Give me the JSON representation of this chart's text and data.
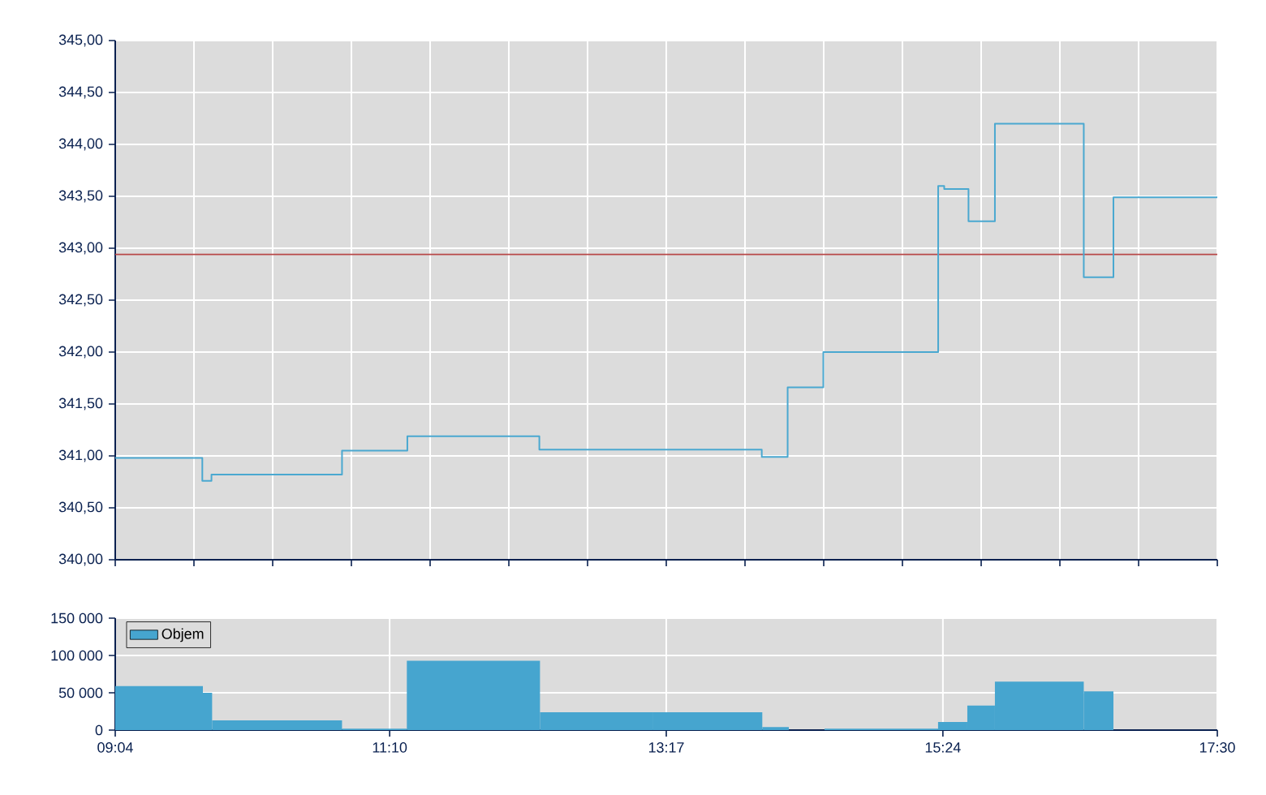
{
  "chart_data": [
    {
      "type": "step",
      "color": "#4aa8d0",
      "x": [
        9.0667,
        9.733,
        9.803,
        10.802,
        11.302,
        12.312,
        14.014,
        14.212,
        14.485,
        15.364,
        15.41,
        15.596,
        15.798,
        16.478,
        16.705,
        17.5
      ],
      "values": [
        340.98,
        340.76,
        340.82,
        341.05,
        341.19,
        341.06,
        340.99,
        341.66,
        342.0,
        343.6,
        343.57,
        343.26,
        344.2,
        342.72,
        343.49,
        343.49
      ],
      "xlim": [
        9.0667,
        17.5
      ],
      "xticks": [
        {
          "value": 9.0667,
          "label": null
        },
        {
          "value": 9.669,
          "label": null
        },
        {
          "value": 10.2714,
          "label": null
        },
        {
          "value": 10.8738,
          "label": null
        },
        {
          "value": 11.4762,
          "label": null
        },
        {
          "value": 12.0786,
          "label": null
        },
        {
          "value": 12.681,
          "label": null
        },
        {
          "value": 13.2833,
          "label": null
        },
        {
          "value": 13.8857,
          "label": null
        },
        {
          "value": 14.4881,
          "label": null
        },
        {
          "value": 15.0905,
          "label": null
        },
        {
          "value": 15.6929,
          "label": null
        },
        {
          "value": 16.2952,
          "label": null
        },
        {
          "value": 16.8976,
          "label": null
        },
        {
          "value": 17.5,
          "label": null
        }
      ],
      "ylim": [
        340,
        345
      ],
      "yticks": [
        {
          "value": 340,
          "label": "340,00"
        },
        {
          "value": 340.5,
          "label": "340,50"
        },
        {
          "value": 341,
          "label": "341,00"
        },
        {
          "value": 341.5,
          "label": "341,50"
        },
        {
          "value": 342,
          "label": "342,00"
        },
        {
          "value": 342.5,
          "label": "342,50"
        },
        {
          "value": 343,
          "label": "343,00"
        },
        {
          "value": 343.5,
          "label": "343,50"
        },
        {
          "value": 344,
          "label": "344,00"
        },
        {
          "value": 344.5,
          "label": "344,50"
        },
        {
          "value": 345,
          "label": "345,00"
        }
      ],
      "ref_lines": [
        {
          "axis": "y",
          "value": 342.94,
          "color": "#b84848"
        }
      ],
      "grid": true,
      "tick_labels": "y"
    },
    {
      "type": "histogram",
      "bins": [
        9.0667,
        9.7374,
        9.808,
        10.802,
        11.298,
        12.317,
        13.178,
        14.018,
        14.221,
        14.494,
        15.363,
        15.587,
        15.798,
        16.478,
        16.705
      ],
      "series": [
        {
          "name": "Objem",
          "color": "#46a5cf",
          "values": [
            59000,
            50000,
            13000,
            2000,
            93000,
            24000,
            24000,
            4000,
            0,
            2000,
            11000,
            33000,
            65000,
            52000
          ]
        }
      ],
      "xlim": [
        9.0667,
        17.5
      ],
      "xticks": [
        {
          "value": 9.0667,
          "label": "09:04"
        },
        {
          "value": 11.1667,
          "label": "11:10"
        },
        {
          "value": 13.2833,
          "label": "13:17"
        },
        {
          "value": 15.4,
          "label": "15:24"
        },
        {
          "value": 17.5,
          "label": "17:30"
        }
      ],
      "ylim": [
        0,
        150000
      ],
      "yticks": [
        {
          "value": 0,
          "label": "0"
        },
        {
          "value": 50000,
          "label": "50 000"
        },
        {
          "value": 100000,
          "label": "100 000"
        },
        {
          "value": 150000,
          "label": "150 000"
        }
      ],
      "grid": true,
      "legend": "top left"
    }
  ]
}
